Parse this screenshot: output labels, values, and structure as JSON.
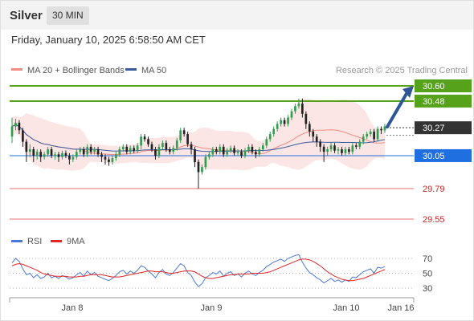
{
  "header": {
    "title": "Silver",
    "timeframe": "30 MIN",
    "datetime": "Friday, January 10, 2025 6:58:50 AM CET"
  },
  "legend": {
    "ma20": "MA 20 + Bollinger Bands",
    "ma50": "MA 50",
    "rsi": "RSI",
    "rsi_ma": "9MA"
  },
  "credit": "Research © 2025 Trading Central",
  "colors": {
    "up": "#2e9e4f",
    "down": "#222222",
    "bollinger": "#fbdada",
    "ma20": "#f28b82",
    "ma50": "#3a5a9a",
    "resistance": "#56a31b",
    "support": "#1f6fe0",
    "support2": "#e57373",
    "current": "#333333",
    "rsi": "#4a78d6",
    "rsi_ma": "#e32626"
  },
  "chart_data": [
    {
      "type": "candlestick",
      "x_labels": [
        "Jan 8",
        "Jan 9",
        "Jan 10",
        "Jan 16"
      ],
      "ylim": [
        29.5,
        30.65
      ],
      "current_price": 30.27,
      "levels": [
        {
          "value": 30.6,
          "label": "30.60",
          "kind": "resistance"
        },
        {
          "value": 30.48,
          "label": "30.48",
          "kind": "resistance"
        },
        {
          "value": 30.05,
          "label": "30.05",
          "kind": "support"
        },
        {
          "value": 29.79,
          "label": "29.79",
          "kind": "support2"
        },
        {
          "value": 29.55,
          "label": "29.55",
          "kind": "support2"
        }
      ],
      "current_label": "30.27",
      "projection": {
        "from": 30.27,
        "to": 30.6
      },
      "close": [
        30.28,
        30.31,
        30.25,
        30.16,
        30.08,
        30.1,
        30.05,
        30.08,
        30.04,
        30.06,
        30.1,
        30.05,
        30.06,
        30.04,
        30.07,
        30.05,
        30.02,
        30.04,
        30.08,
        30.1,
        30.06,
        30.12,
        30.08,
        30.1,
        30.06,
        30.04,
        30.02,
        30.0,
        30.03,
        30.06,
        30.1,
        30.12,
        30.08,
        30.11,
        30.09,
        30.13,
        30.2,
        30.18,
        30.14,
        30.1,
        30.05,
        30.12,
        30.15,
        30.1,
        30.08,
        30.11,
        30.17,
        30.25,
        30.22,
        30.14,
        30.1,
        30.0,
        29.92,
        29.96,
        30.04,
        30.06,
        30.1,
        30.08,
        30.12,
        30.06,
        30.09,
        30.11,
        30.07,
        30.08,
        30.05,
        30.09,
        30.12,
        30.08,
        30.06,
        30.1,
        30.13,
        30.18,
        30.22,
        30.26,
        30.3,
        30.33,
        30.3,
        30.35,
        30.4,
        30.44,
        30.46,
        30.38,
        30.3,
        30.24,
        30.2,
        30.16,
        30.12,
        30.08,
        30.1,
        30.13,
        30.09,
        30.1,
        30.07,
        30.1,
        30.08,
        30.13,
        30.12,
        30.16,
        30.2,
        30.22,
        30.24,
        30.18,
        30.26,
        30.25,
        30.28
      ],
      "open": [
        30.2,
        30.28,
        30.31,
        30.25,
        30.16,
        30.08,
        30.1,
        30.05,
        30.08,
        30.04,
        30.06,
        30.1,
        30.05,
        30.06,
        30.04,
        30.07,
        30.05,
        30.02,
        30.04,
        30.08,
        30.1,
        30.06,
        30.12,
        30.08,
        30.1,
        30.06,
        30.04,
        30.02,
        30.0,
        30.03,
        30.06,
        30.1,
        30.12,
        30.08,
        30.11,
        30.09,
        30.13,
        30.2,
        30.18,
        30.14,
        30.1,
        30.05,
        30.12,
        30.15,
        30.1,
        30.08,
        30.11,
        30.17,
        30.25,
        30.22,
        30.14,
        30.1,
        30.0,
        29.92,
        29.96,
        30.04,
        30.06,
        30.1,
        30.08,
        30.12,
        30.06,
        30.09,
        30.11,
        30.07,
        30.08,
        30.05,
        30.09,
        30.12,
        30.08,
        30.06,
        30.1,
        30.13,
        30.18,
        30.22,
        30.26,
        30.3,
        30.33,
        30.3,
        30.35,
        30.4,
        30.44,
        30.46,
        30.38,
        30.3,
        30.24,
        30.2,
        30.16,
        30.12,
        30.08,
        30.1,
        30.13,
        30.09,
        30.1,
        30.07,
        30.1,
        30.08,
        30.13,
        30.12,
        30.16,
        30.2,
        30.22,
        30.24,
        30.18,
        30.26,
        30.25
      ],
      "high": [
        30.35,
        30.34,
        30.33,
        30.27,
        30.18,
        30.14,
        30.12,
        30.1,
        30.1,
        30.08,
        30.12,
        30.12,
        30.08,
        30.08,
        30.09,
        30.09,
        30.07,
        30.06,
        30.1,
        30.12,
        30.12,
        30.14,
        30.14,
        30.12,
        30.12,
        30.08,
        30.06,
        30.04,
        30.05,
        30.08,
        30.12,
        30.14,
        30.14,
        30.13,
        30.13,
        30.15,
        30.22,
        30.22,
        30.2,
        30.16,
        30.12,
        30.14,
        30.17,
        30.17,
        30.12,
        30.13,
        30.19,
        30.27,
        30.27,
        30.24,
        30.16,
        30.12,
        30.02,
        29.98,
        30.06,
        30.08,
        30.12,
        30.12,
        30.14,
        30.14,
        30.11,
        30.13,
        30.13,
        30.1,
        30.1,
        30.11,
        30.14,
        30.14,
        30.1,
        30.12,
        30.15,
        30.2,
        30.24,
        30.28,
        30.32,
        30.35,
        30.35,
        30.37,
        30.42,
        30.46,
        30.5,
        30.5,
        30.4,
        30.32,
        30.26,
        30.22,
        30.18,
        30.14,
        30.12,
        30.15,
        30.15,
        30.12,
        30.12,
        30.12,
        30.12,
        30.15,
        30.15,
        30.18,
        30.22,
        30.24,
        30.26,
        30.26,
        30.28,
        30.28,
        30.3
      ],
      "low": [
        30.15,
        30.25,
        30.22,
        30.12,
        30.0,
        30.04,
        30.0,
        30.02,
        30.0,
        30.02,
        30.04,
        30.03,
        30.02,
        30.0,
        30.02,
        30.03,
        29.98,
        30.0,
        30.02,
        30.06,
        30.04,
        30.04,
        30.06,
        30.06,
        30.04,
        30.0,
        29.98,
        29.97,
        29.98,
        30.01,
        30.04,
        30.08,
        30.06,
        30.06,
        30.07,
        30.07,
        30.1,
        30.16,
        30.12,
        30.08,
        30.02,
        30.03,
        30.1,
        30.08,
        30.06,
        30.06,
        30.09,
        30.15,
        30.2,
        30.12,
        30.06,
        29.96,
        29.79,
        29.9,
        29.94,
        30.02,
        30.04,
        30.06,
        30.06,
        30.04,
        30.04,
        30.07,
        30.05,
        30.05,
        30.03,
        30.03,
        30.07,
        30.06,
        30.03,
        30.04,
        30.08,
        30.11,
        30.16,
        30.2,
        30.24,
        30.28,
        30.28,
        30.28,
        30.33,
        30.38,
        30.42,
        30.35,
        30.26,
        30.2,
        30.16,
        30.12,
        30.08,
        30.0,
        30.05,
        30.08,
        30.07,
        30.06,
        30.05,
        30.05,
        30.06,
        30.06,
        30.1,
        30.1,
        30.14,
        30.18,
        30.2,
        30.16,
        30.16,
        30.22,
        30.23
      ]
    },
    {
      "type": "line",
      "name": "RSI",
      "ylim": [
        20,
        80
      ],
      "yticks": [
        70,
        50,
        30
      ],
      "rsi": [
        64,
        70,
        66,
        56,
        48,
        50,
        44,
        48,
        43,
        45,
        50,
        44,
        46,
        43,
        47,
        45,
        42,
        44,
        48,
        51,
        46,
        53,
        48,
        51,
        46,
        44,
        42,
        40,
        43,
        47,
        52,
        54,
        49,
        53,
        50,
        54,
        60,
        58,
        53,
        49,
        44,
        51,
        55,
        49,
        47,
        51,
        57,
        63,
        60,
        51,
        47,
        38,
        32,
        36,
        44,
        47,
        51,
        49,
        53,
        46,
        50,
        52,
        47,
        49,
        45,
        50,
        53,
        49,
        47,
        51,
        54,
        59,
        62,
        65,
        67,
        69,
        66,
        70,
        72,
        74,
        75,
        65,
        57,
        51,
        48,
        44,
        41,
        37,
        40,
        43,
        39,
        41,
        38,
        41,
        39,
        45,
        44,
        48,
        52,
        54,
        56,
        50,
        58,
        57,
        59
      ],
      "rsi_ma": [
        60,
        62,
        63,
        62,
        60,
        58,
        56,
        54,
        51,
        49,
        48,
        47,
        46,
        46,
        46,
        46,
        45,
        45,
        45,
        46,
        46,
        47,
        48,
        48,
        48,
        48,
        47,
        46,
        45,
        45,
        45,
        46,
        47,
        48,
        49,
        50,
        51,
        52,
        53,
        53,
        52,
        52,
        52,
        51,
        50,
        50,
        51,
        52,
        53,
        53,
        53,
        52,
        49,
        46,
        44,
        43,
        43,
        44,
        45,
        46,
        47,
        48,
        48,
        49,
        49,
        49,
        49,
        50,
        50,
        50,
        50,
        51,
        52,
        54,
        56,
        58,
        60,
        62,
        64,
        66,
        68,
        69,
        69,
        68,
        66,
        63,
        60,
        56,
        52,
        49,
        46,
        44,
        42,
        41,
        40,
        40,
        41,
        42,
        43,
        45,
        47,
        49,
        51,
        53,
        55
      ]
    }
  ]
}
